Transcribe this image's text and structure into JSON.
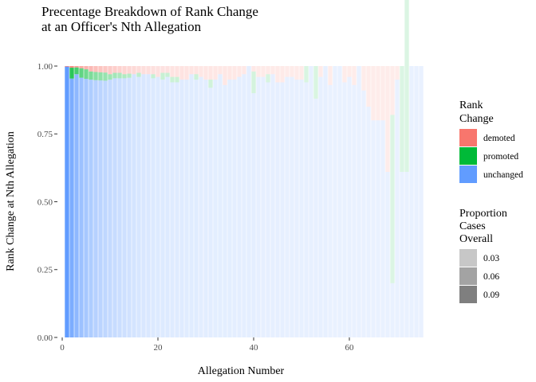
{
  "chart_data": {
    "type": "bar",
    "stacked": true,
    "title_lines": [
      "Precentage Breakdown of Rank Change",
      "at an Officer's Nth Allegation"
    ],
    "xlabel": "Allegation Number",
    "ylabel": "Rank Change at Nth Allegation",
    "xlim": [
      -1,
      76
    ],
    "ylim": [
      0,
      1
    ],
    "x_ticks": [
      0,
      20,
      40,
      60
    ],
    "y_ticks": [
      0,
      0.25,
      0.5,
      0.75,
      1.0
    ],
    "y_tick_labels": [
      "0.00",
      "0.25",
      "0.50",
      "0.75",
      "1.00"
    ],
    "grid": false,
    "legend_placement": "right",
    "fill_legend": {
      "title_lines": [
        "Rank",
        "Change"
      ],
      "items": [
        {
          "label": "demoted",
          "color": "#F8766D"
        },
        {
          "label": "promoted",
          "color": "#00BA38"
        },
        {
          "label": "unchanged",
          "color": "#619CFF"
        }
      ]
    },
    "alpha_legend": {
      "title_lines": [
        "Proportion",
        "Cases",
        "Overall"
      ],
      "items": [
        {
          "label": "0.03",
          "alpha": 0.22
        },
        {
          "label": "0.06",
          "alpha": 0.36
        },
        {
          "label": "0.09",
          "alpha": 0.5
        }
      ]
    },
    "series_colors": {
      "demoted": "#F8766D",
      "promoted": "#00BA38",
      "unchanged": "#619CFF"
    },
    "x": [
      1,
      2,
      3,
      4,
      5,
      6,
      7,
      8,
      9,
      10,
      11,
      12,
      13,
      14,
      15,
      16,
      17,
      18,
      19,
      20,
      21,
      22,
      23,
      24,
      25,
      26,
      27,
      28,
      29,
      30,
      31,
      32,
      33,
      34,
      35,
      36,
      37,
      38,
      39,
      40,
      41,
      42,
      43,
      44,
      45,
      46,
      47,
      48,
      49,
      50,
      51,
      52,
      53,
      54,
      55,
      56,
      57,
      58,
      59,
      60,
      61,
      62,
      63,
      64,
      65,
      66,
      67,
      68,
      69,
      70,
      71,
      72,
      73,
      74,
      75
    ],
    "unchanged": [
      0.998,
      0.954,
      0.97,
      0.957,
      0.953,
      0.95,
      0.948,
      0.947,
      0.946,
      0.95,
      0.955,
      0.955,
      0.955,
      0.957,
      0.97,
      0.96,
      0.97,
      0.97,
      0.955,
      0.96,
      0.95,
      0.96,
      0.94,
      0.94,
      0.95,
      0.95,
      0.97,
      0.95,
      0.96,
      0.95,
      0.92,
      0.95,
      0.97,
      0.93,
      0.95,
      0.95,
      0.96,
      0.97,
      1.0,
      0.9,
      0.96,
      0.96,
      0.94,
      0.97,
      0.94,
      0.94,
      0.96,
      0.96,
      0.95,
      0.95,
      0.94,
      1.0,
      0.88,
      0.96,
      1.0,
      0.93,
      1.0,
      1.0,
      0.94,
      0.96,
      0.93,
      1.0,
      0.91,
      0.85,
      0.8,
      0.8,
      0.8,
      0.61,
      0.2,
      0.95,
      0.61,
      0.61,
      1.0,
      1.0,
      1.0
    ],
    "promoted": [
      0.0,
      0.04,
      0.025,
      0.035,
      0.035,
      0.03,
      0.03,
      0.03,
      0.03,
      0.02,
      0.02,
      0.02,
      0.015,
      0.015,
      0.0,
      0.015,
      0.0,
      0.0,
      0.015,
      0.0,
      0.025,
      0.015,
      0.02,
      0.02,
      0.0,
      0.0,
      0.0,
      0.02,
      0.0,
      0.0,
      0.03,
      0.0,
      0.0,
      0.0,
      0.0,
      0.0,
      0.0,
      0.0,
      0.0,
      0.08,
      0.0,
      0.0,
      0.03,
      0.0,
      0.0,
      0.0,
      0.0,
      0.0,
      0.0,
      0.0,
      0.06,
      0.0,
      0.12,
      0.0,
      0.0,
      0.0,
      0.0,
      0.0,
      0.0,
      0.0,
      0.0,
      0.0,
      0.0,
      0.0,
      0.0,
      0.0,
      0.0,
      0.0,
      0.62,
      0.0,
      0.39,
      1.0,
      0.0,
      0.0,
      0.0
    ],
    "demoted": [
      0.002,
      0.006,
      0.005,
      0.008,
      0.012,
      0.02,
      0.022,
      0.023,
      0.024,
      0.03,
      0.025,
      0.025,
      0.03,
      0.028,
      0.03,
      0.025,
      0.03,
      0.03,
      0.03,
      0.04,
      0.025,
      0.025,
      0.04,
      0.04,
      0.05,
      0.05,
      0.03,
      0.03,
      0.04,
      0.05,
      0.05,
      0.05,
      0.03,
      0.07,
      0.05,
      0.05,
      0.04,
      0.03,
      0.0,
      0.02,
      0.04,
      0.04,
      0.03,
      0.03,
      0.06,
      0.06,
      0.04,
      0.04,
      0.05,
      0.05,
      0.0,
      0.0,
      0.0,
      0.04,
      0.0,
      0.07,
      0.0,
      0.0,
      0.06,
      0.04,
      0.07,
      0.0,
      0.09,
      0.15,
      0.2,
      0.2,
      0.2,
      0.39,
      0.18,
      0.05,
      0.0,
      0.0,
      0.0,
      0.0,
      0.0
    ],
    "proportion_overall": [
      0.095,
      0.075,
      0.063,
      0.053,
      0.046,
      0.041,
      0.036,
      0.033,
      0.03,
      0.027,
      0.025,
      0.022,
      0.02,
      0.018,
      0.016,
      0.014,
      0.013,
      0.012,
      0.011,
      0.01,
      0.01,
      0.01,
      0.009,
      0.009,
      0.009,
      0.008,
      0.008,
      0.008,
      0.007,
      0.007,
      0.007,
      0.006,
      0.006,
      0.006,
      0.006,
      0.005,
      0.005,
      0.005,
      0.005,
      0.005,
      0.004,
      0.004,
      0.004,
      0.004,
      0.004,
      0.004,
      0.003,
      0.003,
      0.003,
      0.003,
      0.003,
      0.003,
      0.003,
      0.003,
      0.003,
      0.002,
      0.002,
      0.002,
      0.002,
      0.002,
      0.002,
      0.002,
      0.002,
      0.002,
      0.002,
      0.002,
      0.002,
      0.002,
      0.002,
      0.002,
      0.002,
      0.002,
      0.002,
      0.002,
      0.002
    ]
  }
}
